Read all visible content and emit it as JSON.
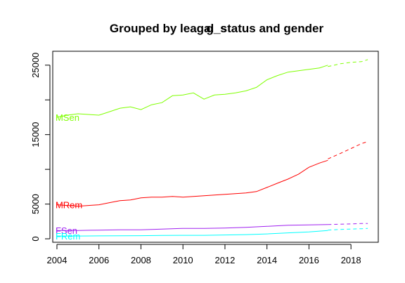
{
  "chart_data": {
    "type": "line",
    "title": "Grouped by leagal_status and gender",
    "title_overlap_text": "g_s",
    "xlabel": "",
    "ylabel": "",
    "xlim": [
      2003.8,
      2019.3
    ],
    "ylim": [
      -500,
      27000
    ],
    "x_ticks": [
      2004,
      2006,
      2008,
      2010,
      2012,
      2014,
      2016,
      2018
    ],
    "x_tick_labels": [
      "2004",
      "2006",
      "2008",
      "2010",
      "2012",
      "2014",
      "2016",
      "2018"
    ],
    "y_ticks": [
      0,
      5000,
      15000,
      25000
    ],
    "y_tick_labels": [
      "0",
      "5000",
      "15000",
      "25000"
    ],
    "y_minor_ticks": [
      10000,
      20000
    ],
    "grid": false,
    "legend": "none",
    "series": [
      {
        "name": "MSen",
        "color": "#7fff00",
        "label": "MSen",
        "x": [
          2004.0,
          2004.5,
          2005.0,
          2005.5,
          2006.0,
          2006.5,
          2007.0,
          2007.5,
          2008.0,
          2008.5,
          2009.0,
          2009.5,
          2010.0,
          2010.5,
          2011.0,
          2011.5,
          2012.0,
          2012.5,
          2013.0,
          2013.5,
          2014.0,
          2014.5,
          2015.0,
          2015.5,
          2016.0,
          2016.5,
          2016.9
        ],
        "values": [
          17500,
          17800,
          18000,
          17900,
          17800,
          18300,
          18800,
          19000,
          18600,
          19300,
          19600,
          20600,
          20700,
          21000,
          20100,
          20700,
          20800,
          21000,
          21300,
          21800,
          22900,
          23500,
          24000,
          24200,
          24400,
          24600,
          25000
        ],
        "forecast_x": [
          2016.9,
          2017.5,
          2018.0,
          2018.5,
          2018.8
        ],
        "forecast_values": [
          24800,
          25200,
          25400,
          25500,
          25800
        ]
      },
      {
        "name": "MRem",
        "color": "#ff0000",
        "label": "MRem",
        "x": [
          2004.0,
          2004.5,
          2005.0,
          2005.5,
          2006.0,
          2006.5,
          2007.0,
          2007.5,
          2008.0,
          2008.5,
          2009.0,
          2009.5,
          2010.0,
          2010.5,
          2011.0,
          2011.5,
          2012.0,
          2012.5,
          2013.0,
          2013.5,
          2014.0,
          2014.5,
          2015.0,
          2015.5,
          2016.0,
          2016.5,
          2016.9
        ],
        "values": [
          4900,
          4800,
          4700,
          4800,
          4900,
          5200,
          5500,
          5600,
          5900,
          6000,
          6000,
          6100,
          6000,
          6100,
          6200,
          6300,
          6400,
          6500,
          6600,
          6800,
          7400,
          8000,
          8600,
          9300,
          10300,
          10900,
          11300
        ],
        "forecast_x": [
          2016.9,
          2017.5,
          2018.0,
          2018.5,
          2018.8
        ],
        "forecast_values": [
          11500,
          12300,
          13000,
          13700,
          14000
        ]
      },
      {
        "name": "FSen",
        "color": "#a020f0",
        "label": "FSen",
        "x": [
          2004.0,
          2005.0,
          2006.0,
          2007.0,
          2008.0,
          2009.0,
          2010.0,
          2011.0,
          2012.0,
          2013.0,
          2014.0,
          2015.0,
          2016.0,
          2016.9
        ],
        "values": [
          1200,
          1200,
          1250,
          1300,
          1300,
          1400,
          1500,
          1500,
          1550,
          1650,
          1800,
          1950,
          2000,
          2050
        ],
        "forecast_x": [
          2016.9,
          2017.5,
          2018.0,
          2018.5,
          2018.8
        ],
        "forecast_values": [
          2050,
          2100,
          2150,
          2200,
          2200
        ]
      },
      {
        "name": "FRem",
        "color": "#00ffff",
        "label": "FRem",
        "x": [
          2004.0,
          2005.0,
          2006.0,
          2007.0,
          2008.0,
          2009.0,
          2010.0,
          2011.0,
          2012.0,
          2013.0,
          2014.0,
          2015.0,
          2016.0,
          2016.9
        ],
        "values": [
          400,
          400,
          420,
          430,
          450,
          480,
          500,
          500,
          550,
          600,
          700,
          850,
          1000,
          1200
        ],
        "forecast_x": [
          2016.9,
          2017.5,
          2018.0,
          2018.5,
          2018.8
        ],
        "forecast_values": [
          1250,
          1350,
          1400,
          1450,
          1500
        ]
      }
    ]
  }
}
